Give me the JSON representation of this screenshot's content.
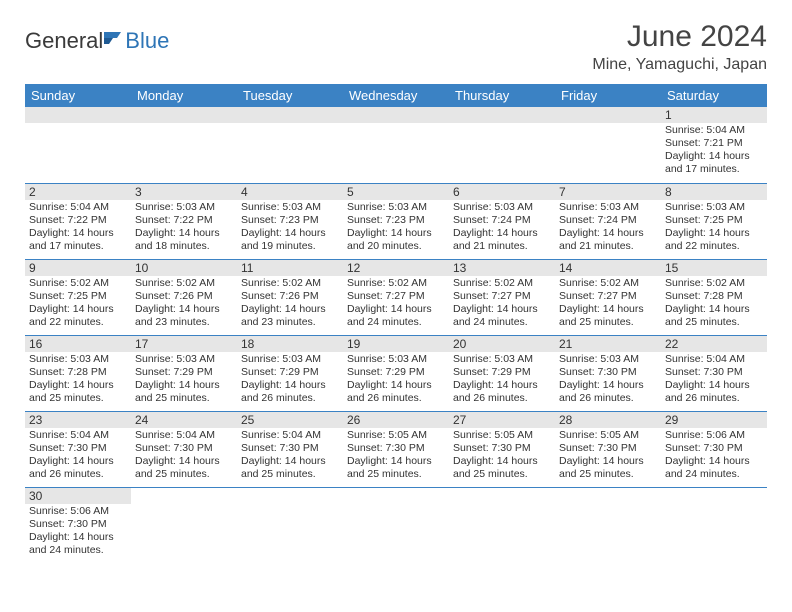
{
  "logo": {
    "text_general": "General",
    "text_blue": "Blue",
    "icon_name": "flag-icon",
    "icon_color": "#2e75b6"
  },
  "title": "June 2024",
  "location": "Mine, Yamaguchi, Japan",
  "colors": {
    "header_bg": "#3b82c4",
    "header_text": "#ffffff",
    "daynum_bg": "#e6e6e6",
    "border": "#3b82c4",
    "text": "#333333"
  },
  "weekdays": [
    "Sunday",
    "Monday",
    "Tuesday",
    "Wednesday",
    "Thursday",
    "Friday",
    "Saturday"
  ],
  "weeks": [
    [
      {
        "blank": true
      },
      {
        "blank": true
      },
      {
        "blank": true
      },
      {
        "blank": true
      },
      {
        "blank": true
      },
      {
        "blank": true
      },
      {
        "day": "1",
        "sunrise": "Sunrise: 5:04 AM",
        "sunset": "Sunset: 7:21 PM",
        "daylight1": "Daylight: 14 hours",
        "daylight2": "and 17 minutes."
      }
    ],
    [
      {
        "day": "2",
        "sunrise": "Sunrise: 5:04 AM",
        "sunset": "Sunset: 7:22 PM",
        "daylight1": "Daylight: 14 hours",
        "daylight2": "and 17 minutes."
      },
      {
        "day": "3",
        "sunrise": "Sunrise: 5:03 AM",
        "sunset": "Sunset: 7:22 PM",
        "daylight1": "Daylight: 14 hours",
        "daylight2": "and 18 minutes."
      },
      {
        "day": "4",
        "sunrise": "Sunrise: 5:03 AM",
        "sunset": "Sunset: 7:23 PM",
        "daylight1": "Daylight: 14 hours",
        "daylight2": "and 19 minutes."
      },
      {
        "day": "5",
        "sunrise": "Sunrise: 5:03 AM",
        "sunset": "Sunset: 7:23 PM",
        "daylight1": "Daylight: 14 hours",
        "daylight2": "and 20 minutes."
      },
      {
        "day": "6",
        "sunrise": "Sunrise: 5:03 AM",
        "sunset": "Sunset: 7:24 PM",
        "daylight1": "Daylight: 14 hours",
        "daylight2": "and 21 minutes."
      },
      {
        "day": "7",
        "sunrise": "Sunrise: 5:03 AM",
        "sunset": "Sunset: 7:24 PM",
        "daylight1": "Daylight: 14 hours",
        "daylight2": "and 21 minutes."
      },
      {
        "day": "8",
        "sunrise": "Sunrise: 5:03 AM",
        "sunset": "Sunset: 7:25 PM",
        "daylight1": "Daylight: 14 hours",
        "daylight2": "and 22 minutes."
      }
    ],
    [
      {
        "day": "9",
        "sunrise": "Sunrise: 5:02 AM",
        "sunset": "Sunset: 7:25 PM",
        "daylight1": "Daylight: 14 hours",
        "daylight2": "and 22 minutes."
      },
      {
        "day": "10",
        "sunrise": "Sunrise: 5:02 AM",
        "sunset": "Sunset: 7:26 PM",
        "daylight1": "Daylight: 14 hours",
        "daylight2": "and 23 minutes."
      },
      {
        "day": "11",
        "sunrise": "Sunrise: 5:02 AM",
        "sunset": "Sunset: 7:26 PM",
        "daylight1": "Daylight: 14 hours",
        "daylight2": "and 23 minutes."
      },
      {
        "day": "12",
        "sunrise": "Sunrise: 5:02 AM",
        "sunset": "Sunset: 7:27 PM",
        "daylight1": "Daylight: 14 hours",
        "daylight2": "and 24 minutes."
      },
      {
        "day": "13",
        "sunrise": "Sunrise: 5:02 AM",
        "sunset": "Sunset: 7:27 PM",
        "daylight1": "Daylight: 14 hours",
        "daylight2": "and 24 minutes."
      },
      {
        "day": "14",
        "sunrise": "Sunrise: 5:02 AM",
        "sunset": "Sunset: 7:27 PM",
        "daylight1": "Daylight: 14 hours",
        "daylight2": "and 25 minutes."
      },
      {
        "day": "15",
        "sunrise": "Sunrise: 5:02 AM",
        "sunset": "Sunset: 7:28 PM",
        "daylight1": "Daylight: 14 hours",
        "daylight2": "and 25 minutes."
      }
    ],
    [
      {
        "day": "16",
        "sunrise": "Sunrise: 5:03 AM",
        "sunset": "Sunset: 7:28 PM",
        "daylight1": "Daylight: 14 hours",
        "daylight2": "and 25 minutes."
      },
      {
        "day": "17",
        "sunrise": "Sunrise: 5:03 AM",
        "sunset": "Sunset: 7:29 PM",
        "daylight1": "Daylight: 14 hours",
        "daylight2": "and 25 minutes."
      },
      {
        "day": "18",
        "sunrise": "Sunrise: 5:03 AM",
        "sunset": "Sunset: 7:29 PM",
        "daylight1": "Daylight: 14 hours",
        "daylight2": "and 26 minutes."
      },
      {
        "day": "19",
        "sunrise": "Sunrise: 5:03 AM",
        "sunset": "Sunset: 7:29 PM",
        "daylight1": "Daylight: 14 hours",
        "daylight2": "and 26 minutes."
      },
      {
        "day": "20",
        "sunrise": "Sunrise: 5:03 AM",
        "sunset": "Sunset: 7:29 PM",
        "daylight1": "Daylight: 14 hours",
        "daylight2": "and 26 minutes."
      },
      {
        "day": "21",
        "sunrise": "Sunrise: 5:03 AM",
        "sunset": "Sunset: 7:30 PM",
        "daylight1": "Daylight: 14 hours",
        "daylight2": "and 26 minutes."
      },
      {
        "day": "22",
        "sunrise": "Sunrise: 5:04 AM",
        "sunset": "Sunset: 7:30 PM",
        "daylight1": "Daylight: 14 hours",
        "daylight2": "and 26 minutes."
      }
    ],
    [
      {
        "day": "23",
        "sunrise": "Sunrise: 5:04 AM",
        "sunset": "Sunset: 7:30 PM",
        "daylight1": "Daylight: 14 hours",
        "daylight2": "and 26 minutes."
      },
      {
        "day": "24",
        "sunrise": "Sunrise: 5:04 AM",
        "sunset": "Sunset: 7:30 PM",
        "daylight1": "Daylight: 14 hours",
        "daylight2": "and 25 minutes."
      },
      {
        "day": "25",
        "sunrise": "Sunrise: 5:04 AM",
        "sunset": "Sunset: 7:30 PM",
        "daylight1": "Daylight: 14 hours",
        "daylight2": "and 25 minutes."
      },
      {
        "day": "26",
        "sunrise": "Sunrise: 5:05 AM",
        "sunset": "Sunset: 7:30 PM",
        "daylight1": "Daylight: 14 hours",
        "daylight2": "and 25 minutes."
      },
      {
        "day": "27",
        "sunrise": "Sunrise: 5:05 AM",
        "sunset": "Sunset: 7:30 PM",
        "daylight1": "Daylight: 14 hours",
        "daylight2": "and 25 minutes."
      },
      {
        "day": "28",
        "sunrise": "Sunrise: 5:05 AM",
        "sunset": "Sunset: 7:30 PM",
        "daylight1": "Daylight: 14 hours",
        "daylight2": "and 25 minutes."
      },
      {
        "day": "29",
        "sunrise": "Sunrise: 5:06 AM",
        "sunset": "Sunset: 7:30 PM",
        "daylight1": "Daylight: 14 hours",
        "daylight2": "and 24 minutes."
      }
    ],
    [
      {
        "day": "30",
        "sunrise": "Sunrise: 5:06 AM",
        "sunset": "Sunset: 7:30 PM",
        "daylight1": "Daylight: 14 hours",
        "daylight2": "and 24 minutes."
      },
      {
        "blank": true
      },
      {
        "blank": true
      },
      {
        "blank": true
      },
      {
        "blank": true
      },
      {
        "blank": true
      },
      {
        "blank": true
      }
    ]
  ]
}
